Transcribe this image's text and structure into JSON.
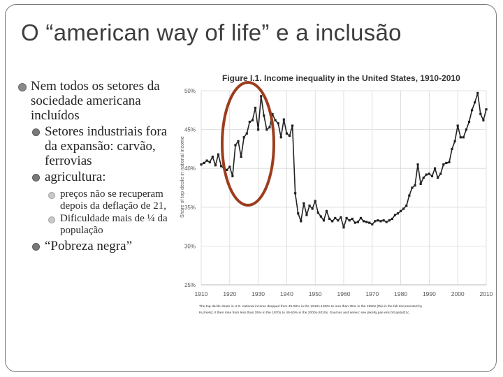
{
  "slide": {
    "title": "O “american way of life” e a inclusão",
    "bullets": {
      "b1": "Nem todos os setores da sociedade americana incluídos",
      "b1_1": "Setores industriais fora da expansão: carvão, ferrovias",
      "b1_2": "agricultura:",
      "b1_2_1": "preços não se recuperam depois da deflação de 21,",
      "b1_2_2": "Dificuldade mais de ¼ da população",
      "b1_3": "“Pobreza negra”"
    }
  },
  "chart_data": {
    "type": "line",
    "title": "Figure I.1. Income inequality in the United States, 1910-2010",
    "xlabel": "",
    "ylabel": "Share of top decile in national income",
    "xlim": [
      1910,
      2010
    ],
    "ylim": [
      25,
      50
    ],
    "x_ticks": [
      1910,
      1920,
      1930,
      1940,
      1950,
      1960,
      1970,
      1980,
      1990,
      2000,
      2010
    ],
    "x_tick_labels": [
      "1910",
      "1920",
      "1930",
      "1940",
      "1950",
      "1960",
      "1970",
      "1980",
      "1990",
      "2000",
      "2010"
    ],
    "y_ticks": [
      25,
      30,
      35,
      40,
      45,
      50
    ],
    "y_tick_labels": [
      "25%",
      "30%",
      "35%",
      "40%",
      "45%",
      "50%"
    ],
    "caption_line1": "The top decile share in U.S. national income dropped from 45-50% in the 1910s-1920s to less than 35% in the 1950s (this is the fall documented by",
    "caption_line2": "Kuznets); it then rose from less than 35% in the 1970s to 45-50% in the 2000s-2010s. Sources and series: see piketty.pse.ens.fr/capital21c.",
    "annotation": "red ellipse highlighting 1917-1929 peak",
    "series": [
      {
        "name": "Top decile share",
        "color": "#222222",
        "x": [
          1910,
          1911,
          1912,
          1913,
          1914,
          1915,
          1916,
          1917,
          1918,
          1919,
          1920,
          1921,
          1922,
          1923,
          1924,
          1925,
          1926,
          1927,
          1928,
          1929,
          1930,
          1931,
          1932,
          1933,
          1934,
          1935,
          1936,
          1937,
          1938,
          1939,
          1940,
          1941,
          1942,
          1943,
          1944,
          1945,
          1946,
          1947,
          1948,
          1949,
          1950,
          1951,
          1952,
          1953,
          1954,
          1955,
          1956,
          1957,
          1958,
          1959,
          1960,
          1961,
          1962,
          1963,
          1964,
          1965,
          1966,
          1967,
          1968,
          1969,
          1970,
          1971,
          1972,
          1973,
          1974,
          1975,
          1976,
          1977,
          1978,
          1979,
          1980,
          1981,
          1982,
          1983,
          1984,
          1985,
          1986,
          1987,
          1988,
          1989,
          1990,
          1991,
          1992,
          1993,
          1994,
          1995,
          1996,
          1997,
          1998,
          1999,
          2000,
          2001,
          2002,
          2003,
          2004,
          2005,
          2006,
          2007,
          2008,
          2009,
          2010
        ],
        "y": [
          40.5,
          40.7,
          41.0,
          40.8,
          41.5,
          40.4,
          41.8,
          40.3,
          40.0,
          39.8,
          40.2,
          39.0,
          43.0,
          43.5,
          41.5,
          44.0,
          44.5,
          46.0,
          46.2,
          47.8,
          45.0,
          49.3,
          46.8,
          45.0,
          45.3,
          47.0,
          46.2,
          45.8,
          44.0,
          46.3,
          44.5,
          44.2,
          45.5,
          36.8,
          34.2,
          33.2,
          35.5,
          34.0,
          35.2,
          34.8,
          35.8,
          34.3,
          33.8,
          33.3,
          34.5,
          33.5,
          33.2,
          33.6,
          33.3,
          33.7,
          32.4,
          33.6,
          33.3,
          33.5,
          33.0,
          33.1,
          33.6,
          33.2,
          33.1,
          33.0,
          32.8,
          33.2,
          33.3,
          33.2,
          33.3,
          33.1,
          33.3,
          33.5,
          34.0,
          34.2,
          34.5,
          34.8,
          35.2,
          36.5,
          37.5,
          37.8,
          40.5,
          38.0,
          38.8,
          39.2,
          39.3,
          39.0,
          40.0,
          38.8,
          39.3,
          40.5,
          40.7,
          40.8,
          42.5,
          43.5,
          45.5,
          44.0,
          44.0,
          45.0,
          46.0,
          47.5,
          48.5,
          49.7,
          47.0,
          46.2,
          47.6
        ]
      }
    ]
  }
}
